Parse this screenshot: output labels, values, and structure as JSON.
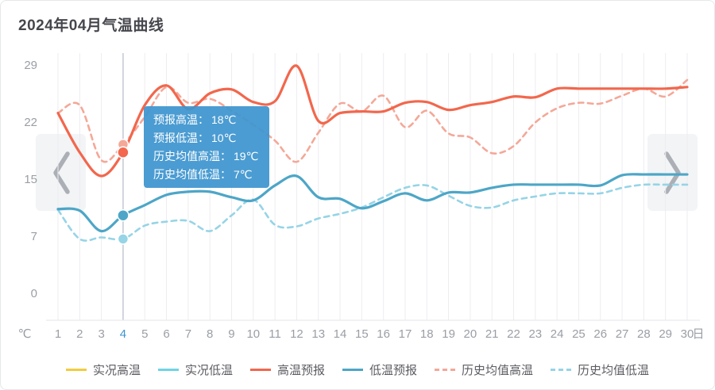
{
  "tooltip": {
    "rows": [
      {
        "label": "预报高温：",
        "value": "18℃"
      },
      {
        "label": "预报低温：",
        "value": "10℃"
      },
      {
        "label": "历史均值高温：",
        "value": "19℃"
      },
      {
        "label": "历史均值低温：",
        "value": "7℃"
      }
    ]
  },
  "chart_data": {
    "type": "line",
    "title": "2024年04月气温曲线",
    "x": [
      1,
      2,
      3,
      4,
      5,
      6,
      7,
      8,
      9,
      10,
      11,
      12,
      13,
      14,
      15,
      16,
      17,
      18,
      19,
      20,
      21,
      22,
      23,
      24,
      25,
      26,
      27,
      28,
      29,
      30
    ],
    "x_unit": "日",
    "y_unit": "℃",
    "y_tick_labels": [
      0,
      7,
      15,
      22,
      29
    ],
    "ylim": [
      0,
      29
    ],
    "grid": "vertical-only",
    "legend_position": "bottom-center",
    "selected_day": 4,
    "selected_values": {
      "预报高温": 18,
      "预报低温": 10,
      "历史均值高温": 19,
      "历史均值低温": 7
    },
    "series": [
      {
        "key": "actual-high",
        "name": "实况高温",
        "color": "#F0CD3C",
        "style": "solid",
        "values": []
      },
      {
        "key": "actual-low",
        "name": "实况低温",
        "color": "#6ED5E3",
        "style": "solid",
        "values": []
      },
      {
        "key": "high-forecast",
        "name": "高温预报",
        "color": "#F2674D",
        "style": "solid",
        "values": [
          23,
          18,
          15,
          18,
          24,
          26.5,
          23.5,
          25.5,
          26,
          24.4,
          24.5,
          29,
          22,
          23,
          23.2,
          23.2,
          24.3,
          24.4,
          23.4,
          24,
          24.4,
          25.1,
          25,
          26.1,
          26.1,
          26.1,
          26.1,
          26.1,
          26.1,
          26.3
        ]
      },
      {
        "key": "low-forecast",
        "name": "低温预报",
        "color": "#4DA6C7",
        "style": "solid",
        "values": [
          10.8,
          10.6,
          8,
          10,
          11.3,
          12.6,
          13,
          13,
          12.3,
          11.9,
          13.8,
          15,
          12.3,
          12.1,
          10.9,
          11.8,
          12.8,
          11.9,
          12.9,
          12.9,
          13.5,
          13.9,
          13.9,
          13.9,
          13.9,
          13.8,
          15.1,
          15.2,
          15.2,
          15.2
        ]
      },
      {
        "key": "hist-avg-high",
        "name": "历史均值高温",
        "color": "#F4A898",
        "style": "dashed",
        "values": [
          23,
          24,
          17,
          19,
          22.5,
          26.3,
          24.3,
          24.8,
          23.3,
          21.5,
          19.5,
          16.8,
          20.5,
          24.2,
          23.2,
          25.2,
          21.2,
          23.3,
          20.4,
          19.9,
          17.9,
          18.8,
          21.8,
          23.6,
          24.3,
          24.2,
          25.2,
          26.1,
          25.1,
          27.2
        ]
      },
      {
        "key": "hist-avg-low",
        "name": "历史均值低温",
        "color": "#96D4E6",
        "style": "dashed",
        "values": [
          10.7,
          7,
          7.2,
          7,
          8.7,
          9.2,
          9.3,
          8,
          10,
          12,
          8.8,
          8.6,
          9.6,
          10.2,
          11,
          12.3,
          13.5,
          13.8,
          12.5,
          11.2,
          11,
          11.9,
          12.4,
          12.8,
          12.8,
          12.8,
          13.5,
          13.9,
          13.9,
          13.9
        ]
      }
    ]
  }
}
